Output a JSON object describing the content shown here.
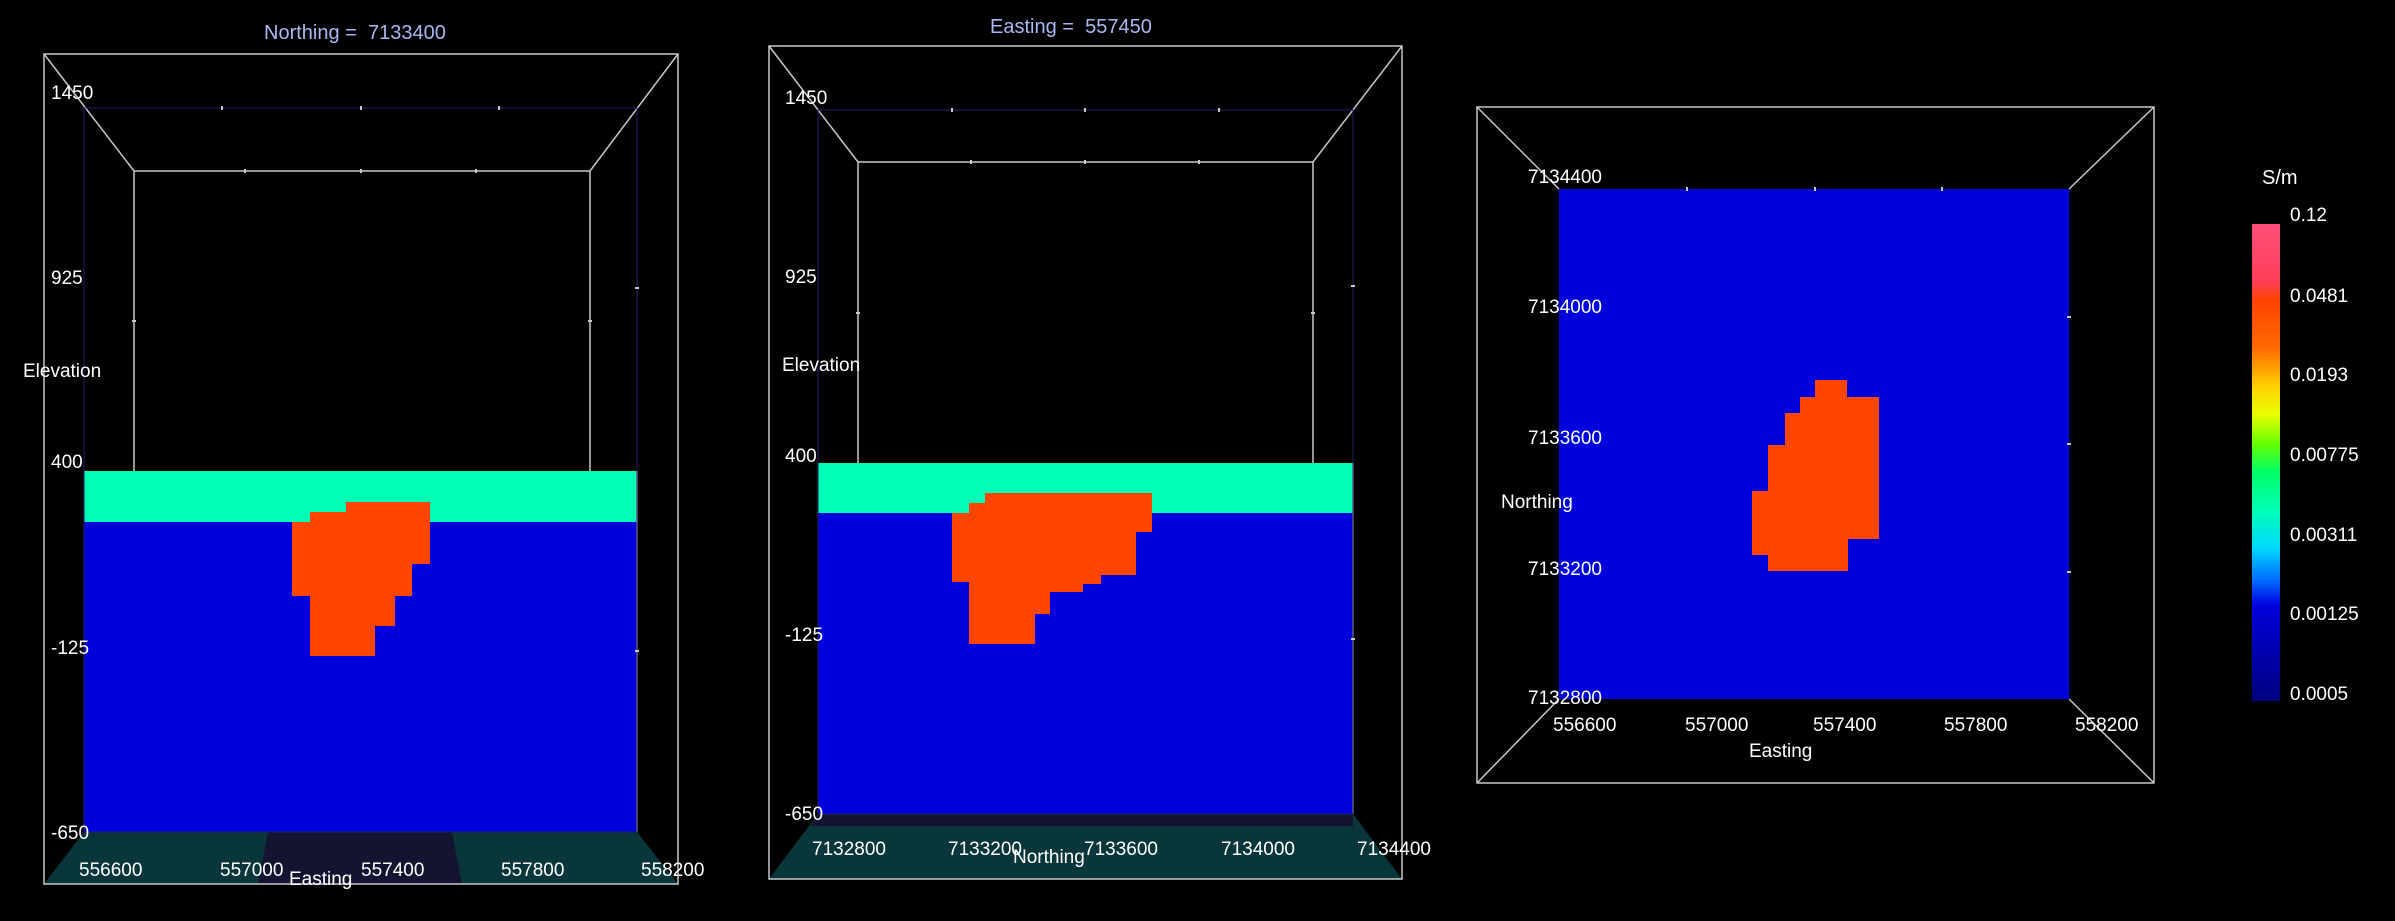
{
  "panels": [
    {
      "title_label": "Northing =",
      "title_value": "7133400",
      "y_axis_label": "Elevation",
      "y_ticks": [
        "1450",
        "925",
        "400",
        "-125",
        "-650"
      ],
      "x_axis_label": "Easting",
      "x_ticks": [
        "556600",
        "557000",
        "557400",
        "557800",
        "558200"
      ]
    },
    {
      "title_label": "Easting =",
      "title_value": "557450",
      "y_axis_label": "Elevation",
      "y_ticks": [
        "1450",
        "925",
        "400",
        "-125",
        "-650"
      ],
      "x_axis_label": "Northing",
      "x_ticks": [
        "7132800",
        "7133200",
        "7133600",
        "7134000",
        "7134400"
      ]
    },
    {
      "y_axis_label": "Northing",
      "y_ticks": [
        "7134400",
        "7134000",
        "7133600",
        "7133200",
        "7132800"
      ],
      "x_axis_label": "Easting",
      "x_ticks": [
        "556600",
        "557000",
        "557400",
        "557800",
        "558200"
      ]
    }
  ],
  "colorbar": {
    "unit": "S/m",
    "ticks": [
      "0.12",
      "0.0481",
      "0.0193",
      "0.00775",
      "0.00311",
      "0.00125",
      "0.0005"
    ]
  },
  "colors": {
    "background": "#000000",
    "background_unit": "#0000dd",
    "surface_layer": "#00ffb4",
    "conductor": "#ff4500",
    "frame_line": "#c8c8c8",
    "title_text": "#a9b8f2",
    "floor": "#08363a"
  }
}
